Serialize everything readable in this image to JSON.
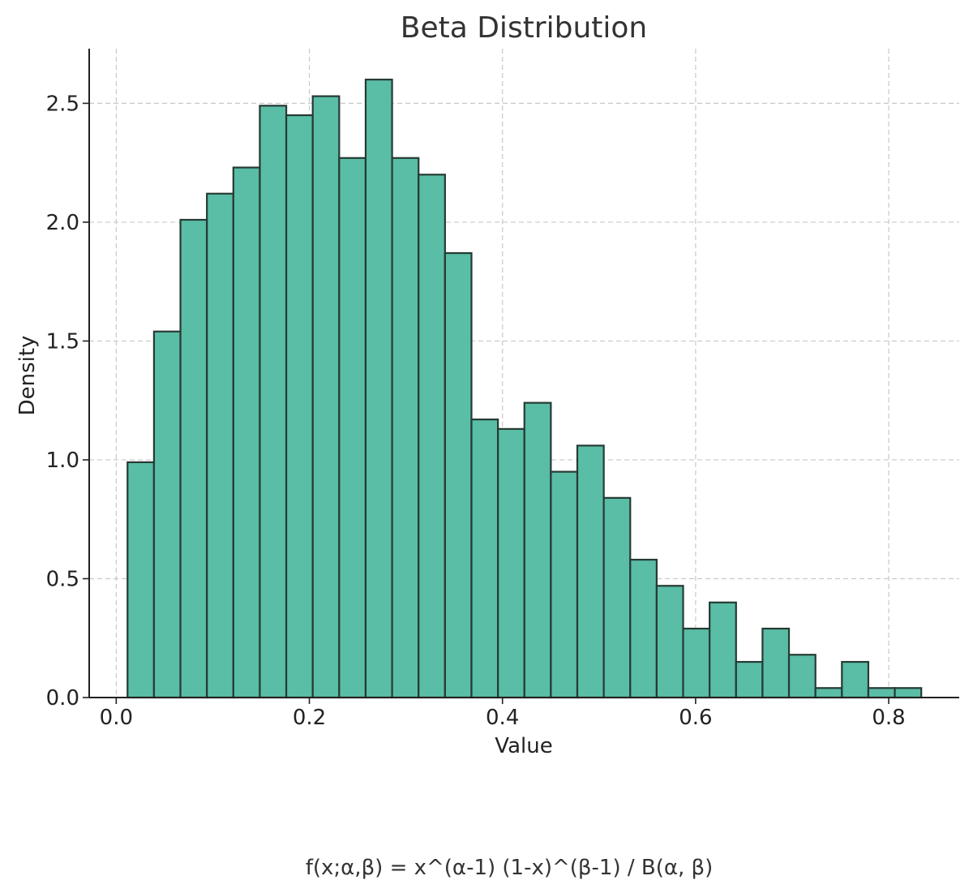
{
  "chart_data": {
    "type": "bar",
    "title": "Beta Distribution",
    "xlabel": "Value",
    "ylabel": "Density",
    "annotation": "f(x;α,β) = x^(α-1) (1-x)^(β-1) / B(α, β)",
    "bin_edges": [
      0.0117,
      0.0391,
      0.0665,
      0.0939,
      0.1213,
      0.1487,
      0.1761,
      0.2035,
      0.2309,
      0.2583,
      0.2857,
      0.3131,
      0.3405,
      0.3679,
      0.3953,
      0.4227,
      0.4501,
      0.4775,
      0.5049,
      0.5323,
      0.5597,
      0.5871,
      0.6145,
      0.6419,
      0.6693,
      0.6967,
      0.7241,
      0.7515,
      0.7789,
      0.8063,
      0.8337
    ],
    "values": [
      0.99,
      1.54,
      2.01,
      2.12,
      2.23,
      2.49,
      2.45,
      2.53,
      2.27,
      2.6,
      2.27,
      2.2,
      1.87,
      1.17,
      1.13,
      1.24,
      0.95,
      1.06,
      0.84,
      0.58,
      0.47,
      0.29,
      0.4,
      0.15,
      0.29,
      0.18,
      0.04,
      0.15,
      0.04,
      0.04
    ],
    "xticks": [
      0.0,
      0.2,
      0.4,
      0.6,
      0.8
    ],
    "xtick_labels": [
      "0.0",
      "0.2",
      "0.4",
      "0.6",
      "0.8"
    ],
    "yticks": [
      0.0,
      0.5,
      1.0,
      1.5,
      2.0,
      2.5
    ],
    "ytick_labels": [
      "0.0",
      "0.5",
      "1.0",
      "1.5",
      "2.0",
      "2.5"
    ],
    "xlim": [
      -0.028,
      0.873
    ],
    "ylim": [
      0,
      2.73
    ],
    "grid": true,
    "bar_color": "#5abda5",
    "edge_color": "#263a34"
  }
}
